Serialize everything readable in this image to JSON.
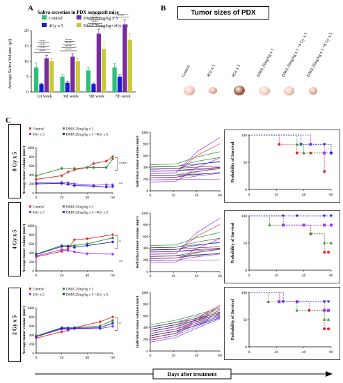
{
  "panel_a": {
    "letter": "A",
    "title": "Saliva secretion in PDX xenograft mice",
    "ylabel": "Average Saliva Volume (μl)",
    "legend": [
      "Control",
      "4Gy x 5",
      "DMA 25mg/kg x 5",
      "DMA 25mg/kg+4Gy x 5"
    ],
    "sig": [
      "****",
      "****",
      "****",
      "****",
      "****",
      "****",
      "****",
      "****",
      "****",
      "****",
      "****",
      "****",
      "****",
      "****",
      "****",
      "****"
    ]
  },
  "panel_b": {
    "letter": "B",
    "title": "Tumor sizes of PDX",
    "groups": [
      "Control",
      "4Gy x 5",
      "8Gy x 5",
      "DMA 25mg/kg x 5",
      "DMA 25mg/kg x 5 +4 Gy x 5",
      "DMA 25mg/kg x 5 +8 Gy x 5"
    ]
  },
  "panel_c": {
    "letter": "C",
    "doses": [
      "8 Gy x 5",
      "4 Gy x 5",
      "2 Gy x 5"
    ],
    "mean_ylabel": "Average tumor volume (mm³)",
    "indiv_ylabel": "Individual tumor volume (mm³)",
    "surv_ylabel": "Probability of Survival",
    "legends": [
      [
        "Control",
        "DMA 25mg/kg x 5",
        "8Gy x 5",
        "DMA 25mg/kg x 5 +8Gy x 5"
      ],
      [
        "Control",
        "DMA 25mg/kg x 5",
        "4Gy x 5",
        "DMA 25mg/kg x 5 +4Gy x 5"
      ],
      [
        "Control",
        "DMA 25mg/kg x 5",
        "2Gy x 5",
        "DMA 25mg/kg x 5 +2Gy x 5"
      ]
    ],
    "sig_row1": [
      "****",
      "**"
    ],
    "sig_row2": [
      "*",
      "**"
    ],
    "sig_row3": [
      "*"
    ],
    "xlabel": "Days after treatment"
  },
  "colors": {
    "control": "#e8262a",
    "dma": "#2f8f2f",
    "rt": "#9b30ff",
    "combo": "#2323c8",
    "a_control": "#2ec07a",
    "a_rt": "#1c1ccc",
    "a_dma": "#7a2aa0",
    "a_combo": "#c9c93a"
  },
  "chart_data": [
    {
      "type": "bar",
      "title": "Saliva secretion in PDX xenograft mice",
      "categories": [
        "1st week",
        "3rd week",
        "5th week",
        "7th week"
      ],
      "ylabel": "Average Saliva Volume (μl)",
      "ylim": [
        0,
        25
      ],
      "yticks": [
        0,
        5,
        10,
        15,
        20,
        25
      ],
      "series": [
        {
          "name": "Control",
          "values": [
            8,
            5,
            7,
            8
          ],
          "err": [
            1.5,
            0.7,
            1.0,
            1.2
          ]
        },
        {
          "name": "4Gy x 5",
          "values": [
            2.5,
            3,
            2.5,
            5
          ],
          "err": [
            0.4,
            0.5,
            0.4,
            0.6
          ]
        },
        {
          "name": "DMA 25mg/kg x 5",
          "values": [
            11,
            11.5,
            19,
            22
          ],
          "err": [
            1.0,
            1.0,
            1.5,
            1.5
          ]
        },
        {
          "name": "DMA 25mg/kg+4Gy x 5",
          "values": [
            10,
            10,
            14,
            17
          ],
          "err": [
            1.0,
            1.0,
            2.0,
            2.0
          ]
        }
      ]
    },
    {
      "type": "line",
      "panel": "8 Gy x 5 average",
      "xlim": [
        0,
        60
      ],
      "ylim": [
        0,
        1000
      ],
      "xticks": [
        0,
        20,
        40,
        60
      ],
      "yticks": [
        0,
        200,
        400,
        600,
        800,
        1000
      ],
      "series": [
        {
          "name": "Control",
          "x": [
            0,
            20,
            25,
            30,
            40,
            45,
            55,
            60
          ],
          "y": [
            300,
            380,
            460,
            510,
            560,
            650,
            700,
            800
          ]
        },
        {
          "name": "DMA 25mg/kg x 5",
          "x": [
            0,
            20,
            30,
            40,
            45,
            55,
            60
          ],
          "y": [
            380,
            540,
            540,
            560,
            560,
            560,
            750
          ]
        },
        {
          "name": "8Gy x 5",
          "x": [
            0,
            20,
            25,
            30,
            45,
            55,
            60
          ],
          "y": [
            220,
            230,
            220,
            200,
            170,
            180,
            180
          ]
        },
        {
          "name": "DMA 25mg/kg x 5 +8Gy x 5",
          "x": [
            0,
            20,
            25,
            30,
            45,
            55,
            60
          ],
          "y": [
            200,
            210,
            190,
            160,
            150,
            130,
            140
          ]
        }
      ]
    },
    {
      "type": "line",
      "panel": "4 Gy x 5 average",
      "xlim": [
        0,
        60
      ],
      "ylim": [
        0,
        1000
      ],
      "xticks": [
        0,
        20,
        40,
        60
      ],
      "yticks": [
        0,
        200,
        400,
        600,
        800,
        1000
      ],
      "series": [
        {
          "name": "Control",
          "x": [
            0,
            20,
            25,
            30,
            40,
            60
          ],
          "y": [
            310,
            430,
            490,
            690,
            710,
            800
          ]
        },
        {
          "name": "DMA 25mg/kg x 5",
          "x": [
            0,
            20,
            25,
            30,
            40,
            60
          ],
          "y": [
            370,
            560,
            550,
            560,
            600,
            730
          ]
        },
        {
          "name": "4Gy x 5",
          "x": [
            0,
            20,
            25,
            30,
            40,
            60
          ],
          "y": [
            330,
            470,
            450,
            420,
            380,
            370
          ]
        },
        {
          "name": "DMA 25mg/kg x 5 +4Gy x 5",
          "x": [
            0,
            20,
            25,
            30,
            40,
            60
          ],
          "y": [
            360,
            540,
            540,
            520,
            560,
            640
          ]
        }
      ]
    },
    {
      "type": "line",
      "panel": "2 Gy x 5 average",
      "xlim": [
        0,
        60
      ],
      "ylim": [
        0,
        1000
      ],
      "xticks": [
        0,
        20,
        40,
        60
      ],
      "yticks": [
        0,
        200,
        400,
        600,
        800,
        1000
      ],
      "series": [
        {
          "name": "Control",
          "x": [
            0,
            20,
            25,
            30,
            50,
            60
          ],
          "y": [
            330,
            470,
            500,
            560,
            690,
            800
          ]
        },
        {
          "name": "DMA 25mg/kg x 5",
          "x": [
            0,
            20,
            25,
            30,
            50,
            60
          ],
          "y": [
            380,
            560,
            560,
            560,
            600,
            720
          ]
        },
        {
          "name": "2Gy x 5",
          "x": [
            0,
            20,
            25,
            30,
            50,
            60
          ],
          "y": [
            360,
            530,
            520,
            540,
            540,
            590
          ]
        },
        {
          "name": "DMA 25mg/kg x 5 +2Gy x 5",
          "x": [
            0,
            20,
            25,
            30,
            50,
            60
          ],
          "y": [
            360,
            550,
            540,
            550,
            560,
            660
          ]
        }
      ]
    },
    {
      "type": "line",
      "panel": "individual tumor volumes",
      "xlim": [
        0,
        60
      ],
      "ylim": [
        0,
        1000
      ],
      "xticks": [
        0,
        20,
        40,
        60
      ],
      "yticks": [
        0,
        200,
        400,
        600,
        800,
        1000
      ]
    },
    {
      "type": "line",
      "panel": "survival",
      "xlim": [
        0,
        60
      ],
      "ylim": [
        0,
        100
      ],
      "xticks": [
        0,
        20,
        40,
        60
      ],
      "yticks": [
        0,
        50,
        100
      ],
      "rows": [
        [
          {
            "name": "Control",
            "x": [
              0,
              22,
              35,
              45,
              55
            ],
            "y": [
              100,
              83,
              67,
              67,
              33
            ]
          },
          {
            "name": "DMA 25mg/kg x 5",
            "x": [
              0,
              35,
              38,
              40,
              55
            ],
            "y": [
              100,
              83,
              83,
              67,
              67
            ]
          },
          {
            "name": "8Gy x 5",
            "x": [
              0,
              45,
              55,
              60
            ],
            "y": [
              100,
              83,
              67,
              67
            ]
          },
          {
            "name": "DMA 25mg/kg x 5 +8Gy x 5",
            "x": [
              0,
              38,
              55,
              60
            ],
            "y": [
              100,
              83,
              83,
              67
            ]
          }
        ],
        [
          {
            "name": "Control",
            "x": [
              0,
              25,
              45,
              55,
              58
            ],
            "y": [
              100,
              83,
              67,
              33,
              33
            ]
          },
          {
            "name": "DMA 25mg/kg x 5",
            "x": [
              0,
              15,
              45,
              55,
              60
            ],
            "y": [
              100,
              83,
              67,
              50,
              50
            ]
          },
          {
            "name": "4Gy x 5",
            "x": [
              0,
              25,
              40,
              55,
              60
            ],
            "y": [
              100,
              83,
              83,
              83,
              83
            ]
          },
          {
            "name": "DMA 25mg/kg x 5 +4Gy x 5",
            "x": [
              0,
              25,
              35,
              55,
              60
            ],
            "y": [
              100,
              100,
              100,
              100,
              100
            ]
          }
        ],
        [
          {
            "name": "Control",
            "x": [
              0,
              22,
              44,
              55,
              58
            ],
            "y": [
              100,
              83,
              67,
              33,
              33
            ]
          },
          {
            "name": "DMA 25mg/kg x 5",
            "x": [
              0,
              14,
              35,
              55,
              58
            ],
            "y": [
              100,
              83,
              67,
              50,
              50
            ]
          },
          {
            "name": "2Gy x 5",
            "x": [
              0,
              22,
              35,
              55,
              58
            ],
            "y": [
              100,
              83,
              83,
              67,
              67
            ]
          },
          {
            "name": "DMA 25mg/kg x 5 +2Gy x 5",
            "x": [
              0,
              25,
              55,
              58
            ],
            "y": [
              100,
              83,
              83,
              83
            ]
          }
        ]
      ]
    }
  ]
}
